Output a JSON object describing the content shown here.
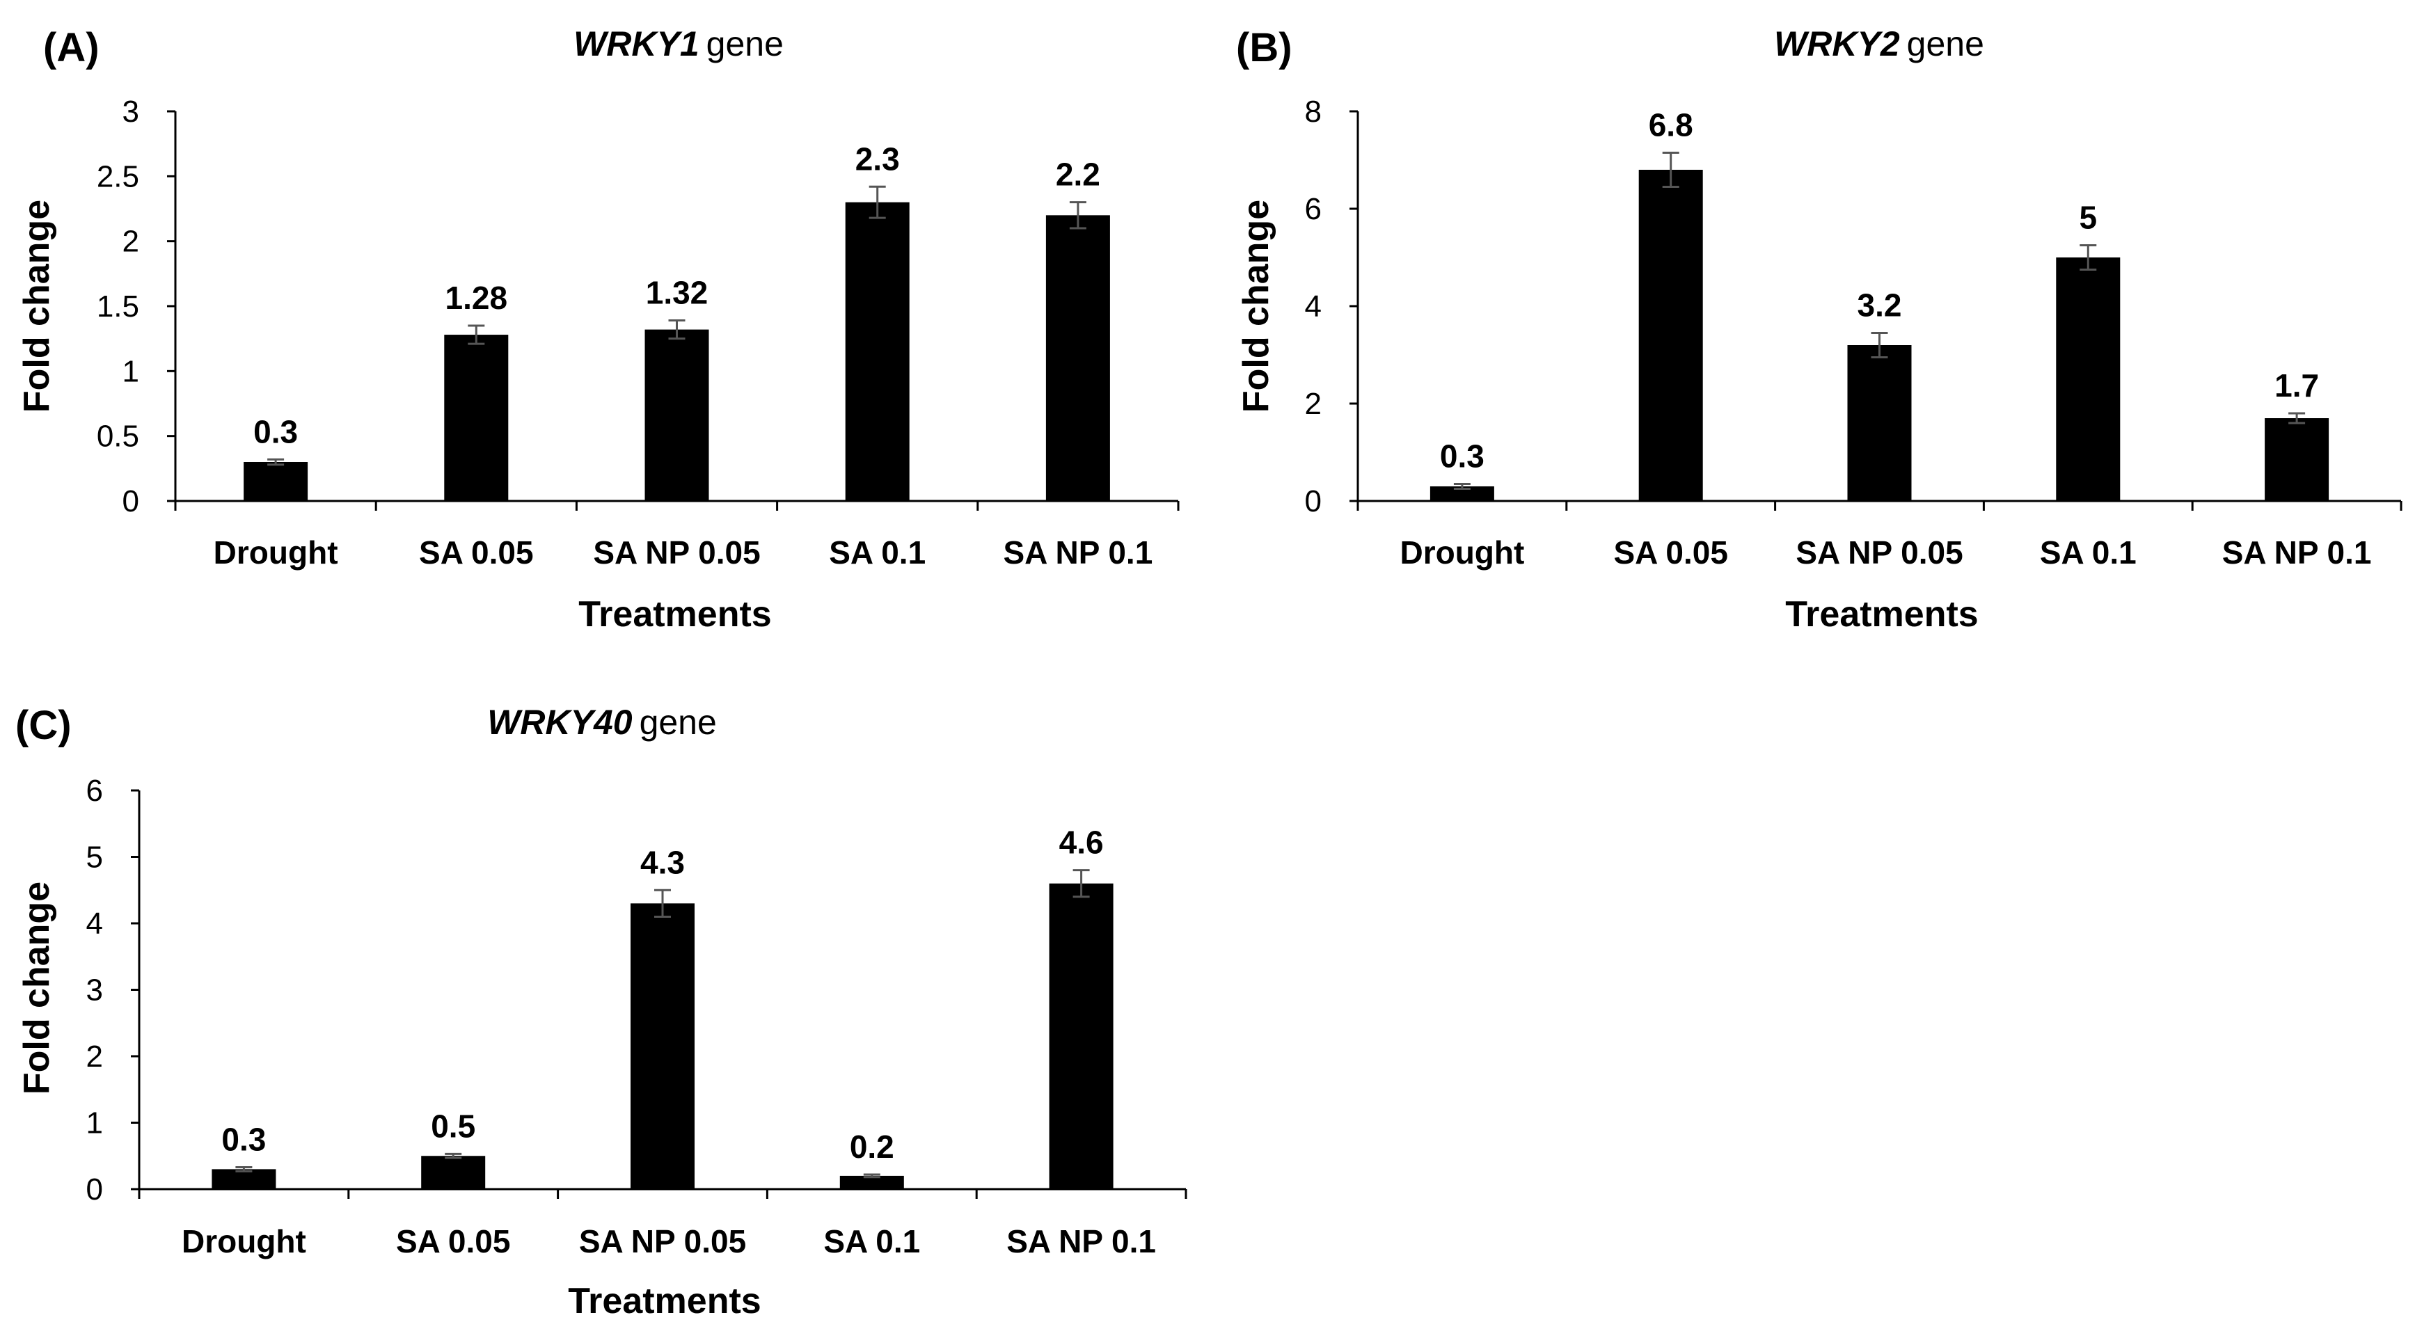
{
  "chart_data": [
    {
      "type": "bar",
      "panel": "(A)",
      "title_gene": "WRKY1",
      "title_suffix": "gene",
      "categories": [
        "Drought",
        "SA 0.05",
        "SA NP 0.05",
        "SA 0.1",
        "SA NP 0.1"
      ],
      "values": [
        0.3,
        1.28,
        1.32,
        2.3,
        2.2
      ],
      "data_labels": [
        "0.3",
        "1.28",
        "1.32",
        "2.3",
        "2.2"
      ],
      "errors": [
        0.02,
        0.07,
        0.07,
        0.12,
        0.1
      ],
      "yticks": [
        0,
        0.5,
        1,
        1.5,
        2,
        2.5,
        3
      ],
      "ytick_labels": [
        "0",
        "0.5",
        "1",
        "1.5",
        "2",
        "2.5",
        "3"
      ],
      "ylim": [
        0,
        3
      ],
      "xlabel": "Treatments",
      "ylabel": "Fold change",
      "grid": false,
      "color": "#000000"
    },
    {
      "type": "bar",
      "panel": "(B)",
      "title_gene": "WRKY2",
      "title_suffix": "gene",
      "categories": [
        "Drought",
        "SA 0.05",
        "SA NP 0.05",
        "SA 0.1",
        "SA NP 0.1"
      ],
      "values": [
        0.3,
        6.8,
        3.2,
        5,
        1.7
      ],
      "data_labels": [
        "0.3",
        "6.8",
        "3.2",
        "5",
        "1.7"
      ],
      "errors": [
        0.05,
        0.35,
        0.25,
        0.25,
        0.1
      ],
      "yticks": [
        0,
        2,
        4,
        6,
        8
      ],
      "ytick_labels": [
        "0",
        "2",
        "4",
        "6",
        "8"
      ],
      "ylim": [
        0,
        8
      ],
      "xlabel": "Treatments",
      "ylabel": "Fold change",
      "grid": false,
      "color": "#000000"
    },
    {
      "type": "bar",
      "panel": "(C)",
      "title_gene": "WRKY40",
      "title_suffix": "gene",
      "categories": [
        "Drought",
        "SA 0.05",
        "SA NP 0.05",
        "SA 0.1",
        "SA NP 0.1"
      ],
      "values": [
        0.3,
        0.5,
        4.3,
        0.2,
        4.6
      ],
      "data_labels": [
        "0.3",
        "0.5",
        "4.3",
        "0.2",
        "4.6"
      ],
      "errors": [
        0.03,
        0.03,
        0.2,
        0.02,
        0.2
      ],
      "yticks": [
        0,
        1,
        2,
        3,
        4,
        5,
        6
      ],
      "ytick_labels": [
        "0",
        "1",
        "2",
        "3",
        "4",
        "5",
        "6"
      ],
      "ylim": [
        0,
        6
      ],
      "xlabel": "Treatments",
      "ylabel": "Fold change",
      "grid": false,
      "color": "#000000"
    }
  ]
}
